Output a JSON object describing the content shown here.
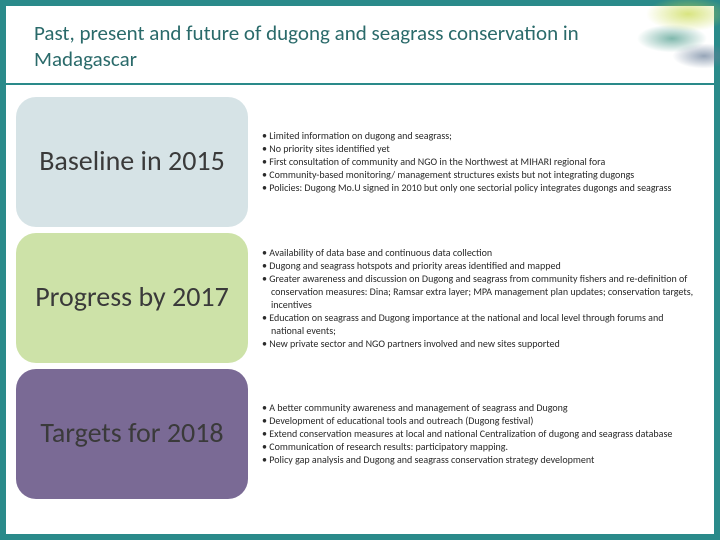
{
  "title": "Past, present and future of dugong and seagrass conservation in Madagascar",
  "title_color": "#2a6a6a",
  "title_fontsize": 21,
  "border_color": "#2a8a8a",
  "sections": [
    {
      "label": "Baseline in 2015",
      "pill_color": "#d6e3e6",
      "bullets": [
        "Limited information on dugong and seagrass;",
        "No priority sites identified yet",
        "First consultation of community and NGO in the Northwest at MIHARI regional fora",
        "Community-based monitoring/ management structures exists but not integrating dugongs",
        "Policies: Dugong Mo.U signed in 2010 but only one sectorial policy integrates dugongs and seagrass"
      ]
    },
    {
      "label": "Progress by 2017",
      "pill_color": "#cde2a8",
      "bullets": [
        "Availability of data base and continuous data collection",
        "Dugong and seagrass hotspots and priority areas identified and mapped",
        "Greater awareness and discussion on Dugong and seagrass from community fishers and re-definition of conservation measures: Dina; Ramsar extra layer; MPA management plan updates; conservation targets, incentives",
        "Education on seagrass and Dugong importance at the national and local level through forums and national events;",
        "New private sector and NGO  partners involved and new sites supported"
      ]
    },
    {
      "label": "Targets for 2018",
      "pill_color": "#7a6a95",
      "bullets": [
        "A better community awareness and management of seagrass and Dugong",
        "Development of educational tools and outreach (Dugong festival)",
        "Extend conservation measures at local and national Centralization of dugong and seagrass database",
        "Communication of research results: participatory mapping.",
        "Policy gap analysis and Dugong and seagrass conservation strategy development"
      ]
    }
  ],
  "body_fontsize": 10,
  "pill_fontsize": 28
}
